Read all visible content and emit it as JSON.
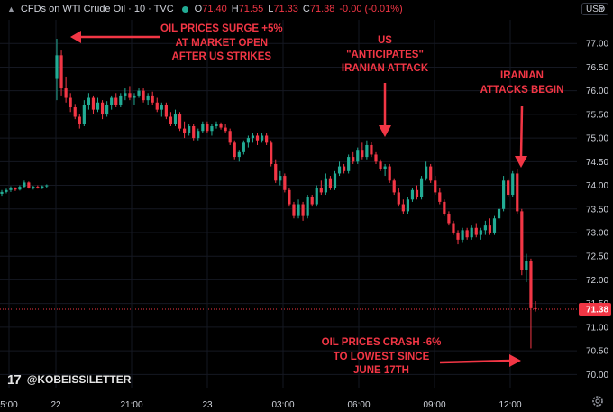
{
  "legend": {
    "symbol": "CFDs on WTI Crude Oil · 10 · TVC",
    "open_label": "O",
    "open": "71.40",
    "high_label": "H",
    "high": "71.55",
    "low_label": "L",
    "low": "71.33",
    "close_label": "C",
    "close": "71.38",
    "change": "-0.00 (-0.01%)"
  },
  "currency": "USD",
  "brand": "@KOBEISSILETTER",
  "icons": [
    "chevron-down-icon",
    "market-status-dot-icon",
    "tradingview-logo-icon",
    "gear-icon"
  ],
  "colors": {
    "background": "#000000",
    "up": "#22ab94",
    "down": "#f23645",
    "annotation": "#f23645",
    "grid": "#151822"
  },
  "annotations": [
    {
      "id": "surge",
      "lines": [
        "OIL PRICES SURGE +5%",
        "AT MARKET OPEN",
        "AFTER US STRIKES"
      ]
    },
    {
      "id": "anticipates",
      "lines": [
        "US",
        "\"ANTICIPATES\"",
        "IRANIAN ATTACK"
      ]
    },
    {
      "id": "attacks",
      "lines": [
        "IRANIAN",
        "ATTACKS BEGIN"
      ]
    },
    {
      "id": "crash",
      "lines": [
        "OIL PRICES CRASH -6%",
        "TO LOWEST SINCE",
        "JUNE 17TH"
      ]
    }
  ],
  "chart_data": {
    "type": "candlestick",
    "title": "CFDs on WTI Crude Oil · 10 · TVC",
    "y_ticks": [
      77.0,
      76.5,
      76.0,
      75.5,
      75.0,
      74.5,
      74.0,
      73.5,
      73.0,
      72.5,
      72.0,
      71.5,
      71.0,
      70.5,
      70.0
    ],
    "ylim": [
      69.72,
      77.5
    ],
    "x_ticks": [
      "5:00",
      "22",
      "21:00",
      "23",
      "03:00",
      "06:00",
      "09:00",
      "12:00"
    ],
    "last_price": "71.38",
    "grid": true,
    "price_scale": "right",
    "candles": [
      {
        "o": 73.82,
        "h": 73.9,
        "l": 73.78,
        "c": 73.86
      },
      {
        "o": 73.86,
        "h": 73.93,
        "l": 73.83,
        "c": 73.9
      },
      {
        "o": 73.9,
        "h": 73.98,
        "l": 73.86,
        "c": 73.94
      },
      {
        "o": 73.94,
        "h": 73.96,
        "l": 73.88,
        "c": 73.91
      },
      {
        "o": 73.91,
        "h": 74.0,
        "l": 73.89,
        "c": 73.97
      },
      {
        "o": 73.97,
        "h": 74.1,
        "l": 73.95,
        "c": 74.06
      },
      {
        "o": 74.06,
        "h": 74.08,
        "l": 73.93,
        "c": 73.95
      },
      {
        "o": 73.95,
        "h": 73.99,
        "l": 73.91,
        "c": 73.97
      },
      {
        "o": 73.97,
        "h": 74.0,
        "l": 73.93,
        "c": 73.95
      },
      {
        "o": 73.95,
        "h": 74.0,
        "l": 73.92,
        "c": 73.98
      },
      {
        "o": 73.98,
        "h": 74.02,
        "l": 73.95,
        "c": 74.0
      },
      {
        "o": 76.25,
        "h": 77.1,
        "l": 75.8,
        "c": 76.75
      },
      {
        "o": 76.75,
        "h": 76.85,
        "l": 75.9,
        "c": 76.05
      },
      {
        "o": 76.05,
        "h": 76.3,
        "l": 75.75,
        "c": 75.85
      },
      {
        "o": 75.85,
        "h": 75.95,
        "l": 75.55,
        "c": 75.65
      },
      {
        "o": 75.65,
        "h": 75.72,
        "l": 75.4,
        "c": 75.45
      },
      {
        "o": 75.45,
        "h": 75.5,
        "l": 75.2,
        "c": 75.3
      },
      {
        "o": 75.3,
        "h": 75.8,
        "l": 75.25,
        "c": 75.7
      },
      {
        "o": 75.7,
        "h": 75.95,
        "l": 75.6,
        "c": 75.85
      },
      {
        "o": 75.85,
        "h": 75.9,
        "l": 75.5,
        "c": 75.6
      },
      {
        "o": 75.6,
        "h": 75.85,
        "l": 75.55,
        "c": 75.75
      },
      {
        "o": 75.75,
        "h": 75.8,
        "l": 75.4,
        "c": 75.5
      },
      {
        "o": 75.5,
        "h": 75.78,
        "l": 75.45,
        "c": 75.7
      },
      {
        "o": 75.7,
        "h": 75.9,
        "l": 75.6,
        "c": 75.85
      },
      {
        "o": 75.85,
        "h": 75.95,
        "l": 75.65,
        "c": 75.7
      },
      {
        "o": 75.7,
        "h": 75.95,
        "l": 75.65,
        "c": 75.9
      },
      {
        "o": 75.9,
        "h": 76.05,
        "l": 75.8,
        "c": 75.95
      },
      {
        "o": 75.95,
        "h": 76.1,
        "l": 75.8,
        "c": 75.85
      },
      {
        "o": 75.85,
        "h": 75.95,
        "l": 75.7,
        "c": 75.9
      },
      {
        "o": 75.9,
        "h": 76.05,
        "l": 75.85,
        "c": 76.0
      },
      {
        "o": 76.0,
        "h": 76.05,
        "l": 75.75,
        "c": 75.8
      },
      {
        "o": 75.8,
        "h": 75.95,
        "l": 75.7,
        "c": 75.9
      },
      {
        "o": 75.9,
        "h": 75.98,
        "l": 75.7,
        "c": 75.75
      },
      {
        "o": 75.75,
        "h": 75.85,
        "l": 75.55,
        "c": 75.6
      },
      {
        "o": 75.6,
        "h": 75.75,
        "l": 75.45,
        "c": 75.7
      },
      {
        "o": 75.7,
        "h": 75.75,
        "l": 75.4,
        "c": 75.45
      },
      {
        "o": 75.45,
        "h": 75.55,
        "l": 75.25,
        "c": 75.3
      },
      {
        "o": 75.3,
        "h": 75.6,
        "l": 75.25,
        "c": 75.5
      },
      {
        "o": 75.5,
        "h": 75.55,
        "l": 75.15,
        "c": 75.2
      },
      {
        "o": 75.2,
        "h": 75.35,
        "l": 75.0,
        "c": 75.1
      },
      {
        "o": 75.1,
        "h": 75.3,
        "l": 75.05,
        "c": 75.25
      },
      {
        "o": 75.25,
        "h": 75.3,
        "l": 74.95,
        "c": 75.0
      },
      {
        "o": 75.0,
        "h": 75.2,
        "l": 74.95,
        "c": 75.15
      },
      {
        "o": 75.15,
        "h": 75.35,
        "l": 75.1,
        "c": 75.3
      },
      {
        "o": 75.3,
        "h": 75.35,
        "l": 75.1,
        "c": 75.15
      },
      {
        "o": 75.15,
        "h": 75.3,
        "l": 75.05,
        "c": 75.25
      },
      {
        "o": 75.25,
        "h": 75.35,
        "l": 75.2,
        "c": 75.3
      },
      {
        "o": 75.3,
        "h": 75.33,
        "l": 75.18,
        "c": 75.22
      },
      {
        "o": 75.22,
        "h": 75.3,
        "l": 75.1,
        "c": 75.15
      },
      {
        "o": 75.15,
        "h": 75.2,
        "l": 74.85,
        "c": 74.9
      },
      {
        "o": 74.9,
        "h": 74.95,
        "l": 74.55,
        "c": 74.6
      },
      {
        "o": 74.6,
        "h": 74.75,
        "l": 74.5,
        "c": 74.7
      },
      {
        "o": 74.7,
        "h": 74.95,
        "l": 74.65,
        "c": 74.9
      },
      {
        "o": 74.9,
        "h": 75.05,
        "l": 74.8,
        "c": 75.0
      },
      {
        "o": 75.0,
        "h": 75.1,
        "l": 74.9,
        "c": 75.05
      },
      {
        "o": 75.05,
        "h": 75.1,
        "l": 74.85,
        "c": 74.95
      },
      {
        "o": 74.95,
        "h": 75.1,
        "l": 74.9,
        "c": 75.05
      },
      {
        "o": 75.05,
        "h": 75.1,
        "l": 74.85,
        "c": 74.9
      },
      {
        "o": 74.9,
        "h": 74.95,
        "l": 74.4,
        "c": 74.45
      },
      {
        "o": 74.45,
        "h": 74.55,
        "l": 74.05,
        "c": 74.1
      },
      {
        "o": 74.1,
        "h": 74.3,
        "l": 74.0,
        "c": 74.2
      },
      {
        "o": 74.2,
        "h": 74.25,
        "l": 73.85,
        "c": 73.9
      },
      {
        "o": 73.9,
        "h": 73.95,
        "l": 73.55,
        "c": 73.6
      },
      {
        "o": 73.6,
        "h": 73.65,
        "l": 73.3,
        "c": 73.35
      },
      {
        "o": 73.35,
        "h": 73.7,
        "l": 73.3,
        "c": 73.6
      },
      {
        "o": 73.6,
        "h": 73.65,
        "l": 73.25,
        "c": 73.35
      },
      {
        "o": 73.35,
        "h": 73.8,
        "l": 73.3,
        "c": 73.75
      },
      {
        "o": 73.75,
        "h": 73.8,
        "l": 73.55,
        "c": 73.6
      },
      {
        "o": 73.6,
        "h": 74.0,
        "l": 73.55,
        "c": 73.95
      },
      {
        "o": 73.95,
        "h": 74.1,
        "l": 73.8,
        "c": 73.85
      },
      {
        "o": 73.85,
        "h": 74.25,
        "l": 73.8,
        "c": 74.15
      },
      {
        "o": 74.15,
        "h": 74.2,
        "l": 73.9,
        "c": 73.95
      },
      {
        "o": 73.95,
        "h": 74.3,
        "l": 73.9,
        "c": 74.25
      },
      {
        "o": 74.25,
        "h": 74.5,
        "l": 74.2,
        "c": 74.4
      },
      {
        "o": 74.4,
        "h": 74.45,
        "l": 74.25,
        "c": 74.3
      },
      {
        "o": 74.3,
        "h": 74.65,
        "l": 74.25,
        "c": 74.6
      },
      {
        "o": 74.6,
        "h": 74.7,
        "l": 74.45,
        "c": 74.5
      },
      {
        "o": 74.5,
        "h": 74.8,
        "l": 74.45,
        "c": 74.75
      },
      {
        "o": 74.75,
        "h": 74.9,
        "l": 74.55,
        "c": 74.6
      },
      {
        "o": 74.6,
        "h": 74.95,
        "l": 74.55,
        "c": 74.85
      },
      {
        "o": 74.85,
        "h": 74.92,
        "l": 74.6,
        "c": 74.65
      },
      {
        "o": 74.65,
        "h": 74.7,
        "l": 74.45,
        "c": 74.5
      },
      {
        "o": 74.5,
        "h": 74.55,
        "l": 74.3,
        "c": 74.35
      },
      {
        "o": 74.35,
        "h": 74.45,
        "l": 74.2,
        "c": 74.4
      },
      {
        "o": 74.4,
        "h": 74.45,
        "l": 74.05,
        "c": 74.1
      },
      {
        "o": 74.1,
        "h": 74.15,
        "l": 73.8,
        "c": 73.85
      },
      {
        "o": 73.85,
        "h": 73.95,
        "l": 73.55,
        "c": 73.6
      },
      {
        "o": 73.6,
        "h": 73.7,
        "l": 73.4,
        "c": 73.45
      },
      {
        "o": 73.45,
        "h": 73.75,
        "l": 73.4,
        "c": 73.7
      },
      {
        "o": 73.7,
        "h": 73.95,
        "l": 73.65,
        "c": 73.9
      },
      {
        "o": 73.9,
        "h": 74.0,
        "l": 73.7,
        "c": 73.75
      },
      {
        "o": 73.75,
        "h": 74.2,
        "l": 73.7,
        "c": 74.15
      },
      {
        "o": 74.15,
        "h": 74.5,
        "l": 74.1,
        "c": 74.4
      },
      {
        "o": 74.4,
        "h": 74.45,
        "l": 74.05,
        "c": 74.1
      },
      {
        "o": 74.1,
        "h": 74.2,
        "l": 73.8,
        "c": 73.85
      },
      {
        "o": 73.85,
        "h": 73.95,
        "l": 73.6,
        "c": 73.65
      },
      {
        "o": 73.65,
        "h": 73.7,
        "l": 73.35,
        "c": 73.4
      },
      {
        "o": 73.4,
        "h": 73.45,
        "l": 73.15,
        "c": 73.2
      },
      {
        "o": 73.2,
        "h": 73.25,
        "l": 72.95,
        "c": 73.0
      },
      {
        "o": 73.0,
        "h": 73.05,
        "l": 72.75,
        "c": 72.85
      },
      {
        "o": 72.85,
        "h": 73.1,
        "l": 72.8,
        "c": 73.05
      },
      {
        "o": 73.05,
        "h": 73.1,
        "l": 72.85,
        "c": 72.9
      },
      {
        "o": 72.9,
        "h": 73.15,
        "l": 72.85,
        "c": 73.1
      },
      {
        "o": 73.1,
        "h": 73.2,
        "l": 72.9,
        "c": 72.95
      },
      {
        "o": 72.95,
        "h": 73.1,
        "l": 72.85,
        "c": 73.05
      },
      {
        "o": 73.05,
        "h": 73.25,
        "l": 72.95,
        "c": 73.15
      },
      {
        "o": 73.15,
        "h": 73.3,
        "l": 72.95,
        "c": 73.0
      },
      {
        "o": 73.0,
        "h": 73.35,
        "l": 72.95,
        "c": 73.3
      },
      {
        "o": 73.3,
        "h": 73.55,
        "l": 73.25,
        "c": 73.5
      },
      {
        "o": 73.5,
        "h": 74.2,
        "l": 73.45,
        "c": 74.1
      },
      {
        "o": 74.1,
        "h": 74.15,
        "l": 73.75,
        "c": 73.8
      },
      {
        "o": 73.8,
        "h": 74.3,
        "l": 73.75,
        "c": 74.25
      },
      {
        "o": 74.25,
        "h": 74.35,
        "l": 73.4,
        "c": 73.45
      },
      {
        "o": 73.45,
        "h": 73.5,
        "l": 72.1,
        "c": 72.2
      },
      {
        "o": 72.2,
        "h": 72.55,
        "l": 71.95,
        "c": 72.4
      },
      {
        "o": 72.4,
        "h": 72.45,
        "l": 70.55,
        "c": 71.4
      },
      {
        "o": 71.4,
        "h": 71.55,
        "l": 71.33,
        "c": 71.38
      }
    ],
    "series": [
      {
        "values": "candles"
      }
    ]
  }
}
